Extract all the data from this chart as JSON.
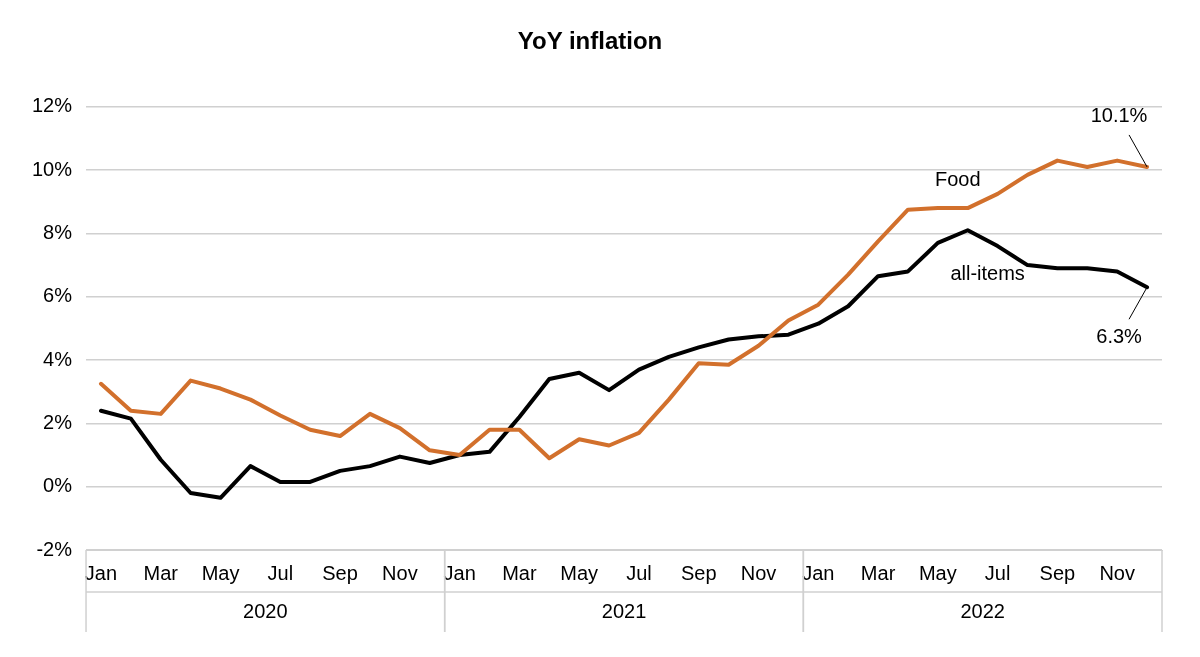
{
  "chart_data": {
    "type": "line",
    "title": "YoY inflation",
    "categories": [
      "Jan",
      null,
      "Mar",
      null,
      "May",
      null,
      "Jul",
      null,
      "Sep",
      null,
      "Nov",
      null,
      "Jan",
      null,
      "Mar",
      null,
      "May",
      null,
      "Jul",
      null,
      "Sep",
      null,
      "Nov",
      null,
      "Jan",
      null,
      "Mar",
      null,
      "May",
      null,
      "Jul",
      null,
      "Sep",
      null,
      "Nov",
      null
    ],
    "series": [
      {
        "name": "Food",
        "color": "#d2702c",
        "values": [
          3.25,
          2.4,
          2.3,
          3.35,
          3.1,
          2.75,
          2.25,
          1.8,
          1.6,
          2.3,
          1.85,
          1.15,
          1.0,
          1.8,
          1.8,
          0.9,
          1.5,
          1.3,
          1.7,
          2.75,
          3.9,
          3.85,
          4.45,
          5.25,
          5.75,
          6.7,
          7.75,
          8.75,
          8.8,
          8.8,
          9.25,
          9.85,
          10.3,
          10.1,
          10.3,
          10.1
        ],
        "value_labels": [
          null,
          null,
          null,
          null,
          null,
          null,
          null,
          null,
          null,
          null,
          null,
          null,
          null,
          null,
          null,
          null,
          null,
          null,
          null,
          null,
          null,
          null,
          null,
          null,
          null,
          null,
          null,
          null,
          null,
          null,
          null,
          null,
          null,
          null,
          null,
          "10.1%"
        ]
      },
      {
        "name": "all-items",
        "color": "#000000",
        "values": [
          2.4,
          2.15,
          0.85,
          -0.2,
          -0.35,
          0.65,
          0.15,
          0.15,
          0.5,
          0.65,
          0.95,
          0.75,
          1.0,
          1.1,
          2.2,
          3.4,
          3.6,
          3.05,
          3.7,
          4.1,
          4.4,
          4.65,
          4.75,
          4.8,
          5.15,
          5.7,
          6.65,
          6.8,
          7.7,
          8.1,
          7.6,
          7.0,
          6.9,
          6.9,
          6.8,
          6.3
        ],
        "value_labels": [
          null,
          null,
          null,
          null,
          null,
          null,
          null,
          null,
          null,
          null,
          null,
          null,
          null,
          null,
          null,
          null,
          null,
          null,
          null,
          null,
          null,
          null,
          null,
          null,
          null,
          null,
          null,
          null,
          null,
          null,
          null,
          null,
          null,
          null,
          null,
          "6.3%"
        ]
      }
    ],
    "annotations": [
      "2020",
      "2021",
      "2022"
    ],
    "ylim": [
      -2,
      12
    ],
    "yticks": [
      {
        "value": -2,
        "label": "-2%"
      },
      {
        "value": 0,
        "label": "0%"
      },
      {
        "value": 2,
        "label": "2%"
      },
      {
        "value": 4,
        "label": "4%"
      },
      {
        "value": 6,
        "label": "6%"
      },
      {
        "value": 8,
        "label": "8%"
      },
      {
        "value": 10,
        "label": "10%"
      },
      {
        "value": 12,
        "label": "12%"
      }
    ],
    "grid": "y",
    "legend": false,
    "marker": "none",
    "line_style": "solid"
  }
}
